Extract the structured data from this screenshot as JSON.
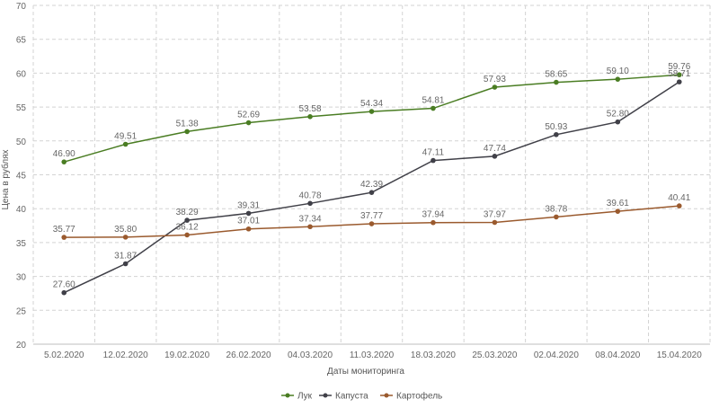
{
  "chart_data": {
    "type": "line",
    "title": "",
    "xlabel": "Даты мониторинга",
    "ylabel": "Цена в рублях",
    "ylim": [
      20,
      70
    ],
    "yticks": [
      20,
      25,
      30,
      35,
      40,
      45,
      50,
      55,
      60,
      65,
      70
    ],
    "grid": true,
    "legend_position": "bottom",
    "categories": [
      "5.02.2020",
      "12.02.2020",
      "19.02.2020",
      "26.02.2020",
      "04.03.2020",
      "11.03.2020",
      "18.03.2020",
      "25.03.2020",
      "02.04.2020",
      "08.04.2020",
      "15.04.2020"
    ],
    "series": [
      {
        "name": "Лук",
        "color": "#4a7d23",
        "values": [
          46.9,
          49.51,
          51.38,
          52.69,
          53.58,
          54.34,
          54.81,
          57.93,
          58.65,
          59.1,
          59.76
        ],
        "labels": [
          "46.90",
          "49.51",
          "51.38",
          "52.69",
          "53.58",
          "54.34",
          "54.81",
          "57.93",
          "58.65",
          "59.10",
          "59.76"
        ]
      },
      {
        "name": "Капуста",
        "color": "#404048",
        "values": [
          27.6,
          31.87,
          38.29,
          39.31,
          40.78,
          42.39,
          47.11,
          47.74,
          50.93,
          52.8,
          58.71
        ],
        "labels": [
          "27.60",
          "31.87",
          "38.29",
          "39.31",
          "40.78",
          "42.39",
          "47.11",
          "47.74",
          "50.93",
          "52.80",
          "58.71"
        ]
      },
      {
        "name": "Картофель",
        "color": "#9a5a2e",
        "values": [
          35.77,
          35.8,
          36.12,
          37.01,
          37.34,
          37.77,
          37.94,
          37.97,
          38.78,
          39.61,
          40.41
        ],
        "labels": [
          "35.77",
          "35.80",
          "36.12",
          "37.01",
          "37.34",
          "37.77",
          "37.94",
          "37.97",
          "38.78",
          "39.61",
          "40.41"
        ]
      }
    ]
  }
}
